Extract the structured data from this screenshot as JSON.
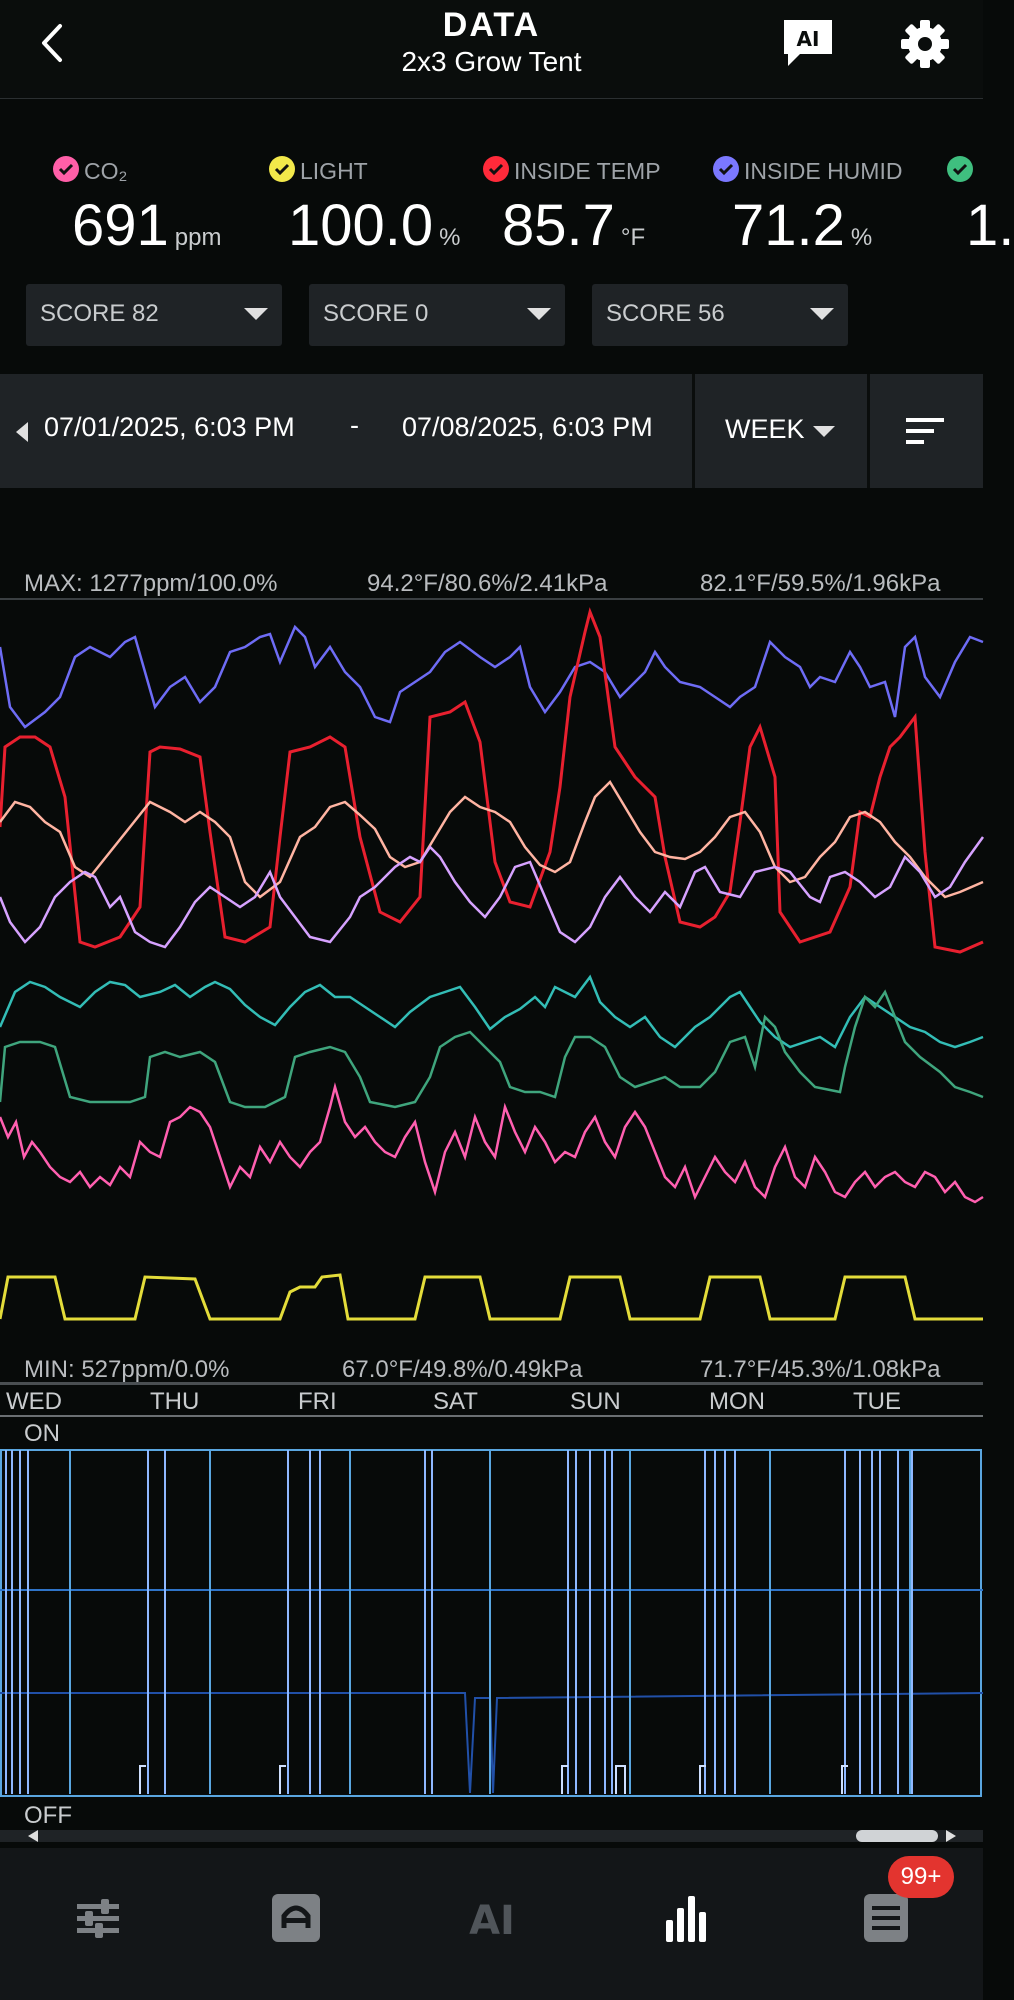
{
  "header": {
    "title": "DATA",
    "subtitle": "2x3 Grow Tent",
    "ai_label": "AI"
  },
  "sensors": [
    {
      "label": "CO₂",
      "value": "691",
      "unit": "ppm",
      "color": "#ff5fa8"
    },
    {
      "label": "LIGHT",
      "value": "100.0",
      "unit": "%",
      "color": "#f2e84a"
    },
    {
      "label": "INSIDE TEMP",
      "value": "85.7",
      "unit": "°F",
      "color": "#ff2a3a"
    },
    {
      "label": "INSIDE HUMID",
      "value": "71.2",
      "unit": "%",
      "color": "#7b78ff"
    },
    {
      "label": "",
      "value": "1.",
      "unit": "",
      "color": "#3fbf7f"
    }
  ],
  "scores": [
    "SCORE 82",
    "SCORE 0",
    "SCORE 56"
  ],
  "date_range": {
    "start": "07/01/2025, 6:03 PM",
    "separator": "-",
    "end": "07/08/2025, 6:03 PM",
    "period": "WEEK"
  },
  "chart": {
    "max_labels": [
      "MAX: 1277ppm/100.0%",
      "94.2°F/80.6%/2.41kPa",
      "82.1°F/59.5%/1.96kPa"
    ],
    "min_labels": [
      "MIN: 527ppm/0.0%",
      "67.0°F/49.8%/0.49kPa",
      "71.7°F/45.3%/1.08kPa"
    ],
    "days": [
      "WED",
      "THU",
      "FRI",
      "SAT",
      "SUN",
      "MON",
      "TUE"
    ],
    "on_label": "ON",
    "off_label": "OFF"
  },
  "nav": {
    "items": [
      "controls-icon",
      "device-icon",
      "ai-icon",
      "data-icon",
      "log-icon"
    ],
    "ai_text": "AI",
    "badge": "99+"
  },
  "colors": {
    "background": "#070a09",
    "panel": "#1f2326",
    "co2": "#ff5fa8",
    "light": "#f2e84a",
    "temp": "#ff2a3a",
    "humid": "#7b78ff",
    "vpd": "#3fbf7f",
    "outside_temp": "#ffb2a0",
    "outside_humid": "#d9a8ff",
    "teal": "#3cc4bf",
    "port_lines": "#5aa6e0"
  }
}
